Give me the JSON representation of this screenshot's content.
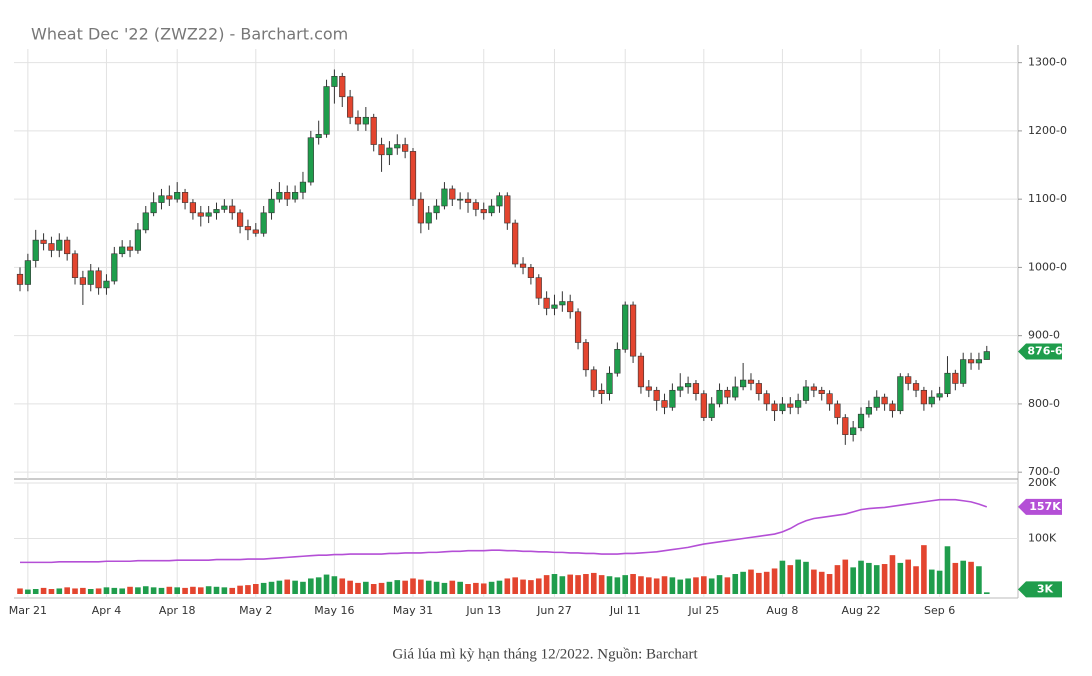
{
  "chart_data": {
    "type": "candlestick",
    "title": "Wheat Dec '22 (ZWZ22) - Barchart.com",
    "caption": "Giá lúa mì kỳ hạn tháng 12/2022. Nguồn: Barchart",
    "categories": [
      null,
      "Mar 21",
      null,
      null,
      null,
      null,
      null,
      null,
      null,
      null,
      null,
      "Apr 4",
      null,
      null,
      null,
      null,
      null,
      null,
      null,
      null,
      "Apr 18",
      null,
      null,
      null,
      null,
      null,
      null,
      null,
      null,
      null,
      "May 2",
      null,
      null,
      null,
      null,
      null,
      null,
      null,
      null,
      null,
      "May 16",
      null,
      null,
      null,
      null,
      null,
      null,
      null,
      null,
      null,
      "May 31",
      null,
      null,
      null,
      null,
      null,
      null,
      null,
      null,
      "Jun 13",
      null,
      null,
      null,
      null,
      null,
      null,
      null,
      null,
      "Jun 27",
      null,
      null,
      null,
      null,
      null,
      null,
      null,
      null,
      "Jul 11",
      null,
      null,
      null,
      null,
      null,
      null,
      null,
      null,
      null,
      "Jul 25",
      null,
      null,
      null,
      null,
      null,
      null,
      null,
      null,
      null,
      "Aug 8",
      null,
      null,
      null,
      null,
      null,
      null,
      null,
      null,
      null,
      "Aug 22",
      null,
      null,
      null,
      null,
      null,
      null,
      null,
      null,
      null,
      "Sep 6",
      null,
      null,
      null,
      null,
      null,
      null
    ],
    "open": [
      990,
      975,
      1010,
      1040,
      1035,
      1025,
      1040,
      1020,
      985,
      975,
      995,
      970,
      980,
      1020,
      1030,
      1025,
      1055,
      1080,
      1095,
      1105,
      1100,
      1110,
      1095,
      1080,
      1075,
      1080,
      1085,
      1090,
      1080,
      1060,
      1055,
      1050,
      1080,
      1100,
      1110,
      1100,
      1110,
      1125,
      1190,
      1195,
      1265,
      1280,
      1250,
      1220,
      1210,
      1220,
      1180,
      1165,
      1175,
      1180,
      1170,
      1100,
      1065,
      1080,
      1090,
      1115,
      1100,
      1100,
      1095,
      1085,
      1080,
      1090,
      1105,
      1065,
      1005,
      1000,
      985,
      955,
      940,
      945,
      950,
      935,
      890,
      850,
      820,
      815,
      845,
      880,
      945,
      870,
      825,
      820,
      805,
      795,
      820,
      825,
      830,
      815,
      780,
      800,
      820,
      810,
      825,
      835,
      830,
      815,
      800,
      790,
      800,
      795,
      805,
      825,
      820,
      815,
      800,
      780,
      755,
      765,
      785,
      795,
      810,
      800,
      790,
      840,
      830,
      820,
      800,
      810,
      815,
      845,
      830,
      865,
      860,
      865
    ],
    "high": [
      1000,
      1020,
      1055,
      1050,
      1045,
      1050,
      1045,
      1025,
      995,
      1005,
      1000,
      990,
      1030,
      1040,
      1040,
      1065,
      1090,
      1110,
      1115,
      1120,
      1125,
      1115,
      1100,
      1090,
      1090,
      1095,
      1100,
      1100,
      1085,
      1070,
      1065,
      1090,
      1115,
      1125,
      1120,
      1120,
      1140,
      1200,
      1215,
      1275,
      1290,
      1285,
      1260,
      1230,
      1235,
      1225,
      1190,
      1185,
      1195,
      1190,
      1175,
      1110,
      1090,
      1100,
      1125,
      1120,
      1110,
      1110,
      1100,
      1095,
      1100,
      1110,
      1110,
      1070,
      1015,
      1005,
      990,
      965,
      960,
      965,
      960,
      940,
      895,
      855,
      830,
      855,
      890,
      950,
      950,
      875,
      835,
      825,
      815,
      830,
      845,
      840,
      835,
      820,
      810,
      830,
      825,
      840,
      860,
      845,
      835,
      820,
      805,
      810,
      810,
      815,
      835,
      830,
      825,
      820,
      805,
      785,
      775,
      795,
      805,
      820,
      815,
      805,
      845,
      845,
      835,
      825,
      820,
      825,
      870,
      850,
      875,
      875,
      875,
      885
    ],
    "low": [
      965,
      965,
      1000,
      1025,
      1015,
      1015,
      1010,
      975,
      945,
      965,
      960,
      960,
      975,
      1015,
      1015,
      1020,
      1050,
      1075,
      1085,
      1090,
      1095,
      1085,
      1070,
      1060,
      1065,
      1070,
      1080,
      1070,
      1050,
      1040,
      1045,
      1045,
      1070,
      1095,
      1090,
      1095,
      1100,
      1120,
      1180,
      1190,
      1240,
      1235,
      1210,
      1200,
      1200,
      1170,
      1140,
      1150,
      1165,
      1160,
      1090,
      1050,
      1055,
      1070,
      1085,
      1090,
      1085,
      1080,
      1075,
      1070,
      1075,
      1080,
      1055,
      1000,
      990,
      975,
      945,
      930,
      930,
      935,
      925,
      880,
      840,
      810,
      800,
      805,
      840,
      875,
      860,
      815,
      810,
      790,
      785,
      790,
      810,
      815,
      805,
      775,
      775,
      795,
      800,
      805,
      820,
      820,
      805,
      790,
      775,
      785,
      785,
      785,
      800,
      810,
      805,
      790,
      770,
      740,
      745,
      760,
      780,
      790,
      790,
      780,
      785,
      820,
      810,
      790,
      795,
      805,
      810,
      820,
      825,
      850,
      850,
      865
    ],
    "close": [
      975,
      1010,
      1040,
      1035,
      1025,
      1040,
      1020,
      985,
      975,
      995,
      970,
      980,
      1020,
      1030,
      1025,
      1055,
      1080,
      1095,
      1105,
      1100,
      1110,
      1095,
      1080,
      1075,
      1080,
      1085,
      1090,
      1080,
      1060,
      1055,
      1050,
      1080,
      1100,
      1110,
      1100,
      1110,
      1125,
      1190,
      1195,
      1265,
      1280,
      1250,
      1220,
      1210,
      1220,
      1180,
      1165,
      1175,
      1180,
      1170,
      1100,
      1065,
      1080,
      1090,
      1115,
      1100,
      1100,
      1095,
      1085,
      1080,
      1090,
      1105,
      1065,
      1005,
      1000,
      985,
      955,
      940,
      945,
      950,
      935,
      890,
      850,
      820,
      815,
      845,
      880,
      945,
      870,
      825,
      820,
      805,
      795,
      820,
      825,
      830,
      815,
      780,
      800,
      820,
      810,
      825,
      835,
      830,
      815,
      800,
      790,
      800,
      795,
      805,
      825,
      820,
      815,
      800,
      780,
      755,
      765,
      785,
      795,
      810,
      800,
      790,
      840,
      830,
      820,
      800,
      810,
      815,
      845,
      830,
      865,
      860,
      865,
      876.75
    ],
    "last_close_label": "876-6",
    "up_color": "#1f9d4c",
    "down_color": "#e3452f",
    "ylim": [
      690,
      1320
    ],
    "yticks": [
      {
        "value": 700,
        "label": "700-0"
      },
      {
        "value": 800,
        "label": "800-0"
      },
      {
        "value": 900,
        "label": "900-0"
      },
      {
        "value": 1000,
        "label": "1000-0"
      },
      {
        "value": 1100,
        "label": "1100-0"
      },
      {
        "value": 1200,
        "label": "1200-0"
      },
      {
        "value": 1300,
        "label": "1300-0"
      }
    ],
    "grid": true,
    "volume": {
      "values": [
        10000,
        8000,
        9000,
        11000,
        9000,
        10000,
        12000,
        10000,
        11000,
        9000,
        10000,
        12000,
        11000,
        10000,
        13000,
        12000,
        14000,
        12000,
        11000,
        13000,
        12000,
        11000,
        13000,
        12000,
        14000,
        13000,
        12000,
        11000,
        15000,
        16000,
        18000,
        20000,
        22000,
        24000,
        26000,
        24000,
        22000,
        28000,
        30000,
        35000,
        32000,
        28000,
        24000,
        20000,
        22000,
        18000,
        20000,
        22000,
        25000,
        24000,
        28000,
        26000,
        24000,
        22000,
        20000,
        24000,
        22000,
        18000,
        20000,
        19000,
        22000,
        24000,
        28000,
        30000,
        26000,
        25000,
        28000,
        34000,
        36000,
        32000,
        35000,
        34000,
        36000,
        38000,
        34000,
        32000,
        30000,
        34000,
        36000,
        32000,
        30000,
        28000,
        32000,
        30000,
        26000,
        28000,
        30000,
        32000,
        28000,
        34000,
        30000,
        36000,
        40000,
        44000,
        38000,
        40000,
        46000,
        60000,
        52000,
        62000,
        58000,
        44000,
        40000,
        36000,
        52000,
        62000,
        48000,
        60000,
        56000,
        52000,
        54000,
        70000,
        56000,
        62000,
        50000,
        88000,
        44000,
        42000,
        86000,
        56000,
        60000,
        58000,
        50000,
        3000
      ],
      "last_label": "3K",
      "ylim": [
        0,
        200000
      ],
      "yticks": [
        {
          "value": 100000,
          "label": "100K"
        },
        {
          "value": 200000,
          "label": "200K"
        }
      ]
    },
    "open_interest": {
      "values": [
        57000,
        57000,
        57000,
        57000,
        57000,
        58000,
        58000,
        58000,
        58000,
        58000,
        58000,
        59000,
        59000,
        59000,
        59000,
        60000,
        60000,
        60000,
        60000,
        60000,
        61000,
        61000,
        61000,
        61000,
        61000,
        62000,
        62000,
        62000,
        62000,
        63000,
        63000,
        63000,
        64000,
        65000,
        66000,
        67000,
        68000,
        69000,
        70000,
        70000,
        71000,
        71000,
        72000,
        72000,
        72000,
        72000,
        72000,
        73000,
        73000,
        74000,
        74000,
        74000,
        75000,
        75000,
        76000,
        77000,
        77000,
        78000,
        78000,
        78000,
        79000,
        79000,
        78000,
        78000,
        77000,
        77000,
        76000,
        76000,
        75000,
        75000,
        74000,
        74000,
        73000,
        73000,
        72000,
        72000,
        72000,
        73000,
        73000,
        74000,
        75000,
        76000,
        78000,
        80000,
        82000,
        84000,
        87000,
        90000,
        92000,
        94000,
        96000,
        98000,
        100000,
        102000,
        104000,
        106000,
        108000,
        112000,
        118000,
        126000,
        132000,
        136000,
        138000,
        140000,
        142000,
        144000,
        148000,
        152000,
        154000,
        155000,
        156000,
        158000,
        160000,
        162000,
        164000,
        166000,
        168000,
        170000,
        170000,
        170000,
        168000,
        166000,
        162000,
        157000
      ],
      "color": "#b44fd6",
      "last_label": "157K"
    }
  }
}
